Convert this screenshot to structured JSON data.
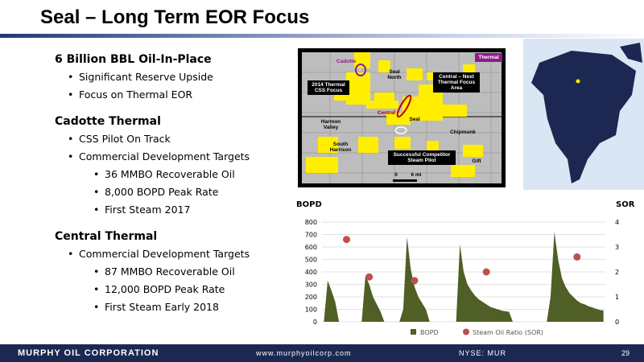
{
  "header": {
    "title": "Seal – Long Term EOR Focus"
  },
  "sections": [
    {
      "heading": "6 Billion BBL Oil-In-Place",
      "items": [
        {
          "text": "Significant Reserve Upside",
          "subitems": []
        },
        {
          "text": "Focus on Thermal EOR",
          "subitems": []
        }
      ]
    },
    {
      "heading": "Cadotte Thermal",
      "items": [
        {
          "text": "CSS Pilot On Track",
          "subitems": []
        },
        {
          "text": "Commercial Development Targets",
          "subitems": [
            "36 MMBO Recoverable Oil",
            "8,000 BOPD Peak Rate",
            "First Steam 2017"
          ]
        }
      ]
    },
    {
      "heading": "Central Thermal",
      "items": [
        {
          "text": "Commercial Development Targets",
          "subitems": [
            "87 MMBO Recoverable Oil",
            "12,000 BOPD Peak Rate",
            "First Steam Early 2018"
          ]
        }
      ]
    }
  ],
  "map": {
    "labels": [
      "Thermal",
      "Cadotte",
      "Seal North",
      "2014 Thermal CSS Focus",
      "Central – Next Thermal Focus Area",
      "Central",
      "Seal",
      "Harmon Valley",
      "Chipmunk",
      "South Harrison",
      "Successful Competitor Steam Pilot",
      "Gift",
      "0",
      "6 mi"
    ]
  },
  "chart_data": {
    "type": "area-scatter",
    "ylabel": "BOPD",
    "y2label": "SOR",
    "categories": [
      null,
      null,
      null,
      null,
      null,
      null,
      null,
      null,
      null,
      null,
      null,
      null,
      null,
      null,
      null,
      null,
      null,
      null,
      null,
      null,
      null,
      null,
      null,
      null,
      null,
      null,
      null,
      null,
      null,
      null,
      null,
      null,
      null,
      null,
      null,
      null,
      null,
      null,
      null,
      null,
      null,
      null,
      null,
      null,
      null,
      null,
      null,
      null,
      null,
      null,
      null,
      null,
      null,
      null,
      null,
      null,
      null,
      null,
      null,
      null,
      null,
      null,
      null,
      null,
      null,
      null,
      null,
      null,
      null,
      null,
      null,
      null,
      null,
      null,
      null
    ],
    "series": [
      {
        "name": "BOPD",
        "color": "#4f5f25",
        "type": "area",
        "values": [
          0,
          330,
          250,
          160,
          0,
          0,
          0,
          0,
          0,
          0,
          0,
          370,
          300,
          200,
          140,
          80,
          0,
          0,
          0,
          0,
          0,
          100,
          680,
          420,
          280,
          200,
          150,
          100,
          0,
          0,
          0,
          0,
          0,
          0,
          0,
          0,
          620,
          400,
          300,
          250,
          210,
          180,
          160,
          140,
          120,
          110,
          100,
          90,
          85,
          80,
          0,
          0,
          0,
          0,
          0,
          0,
          0,
          0,
          0,
          0,
          200,
          720,
          500,
          350,
          280,
          230,
          200,
          170,
          150,
          140,
          125,
          115,
          105,
          95,
          90
        ]
      },
      {
        "name": "Steam Oil Ratio (SOR)",
        "color": "#c0504d",
        "type": "scatter",
        "axis": "y2",
        "values": [
          null,
          null,
          null,
          null,
          null,
          null,
          3.3,
          null,
          null,
          null,
          null,
          null,
          1.8,
          null,
          null,
          null,
          null,
          null,
          null,
          null,
          null,
          null,
          null,
          null,
          1.65,
          null,
          null,
          null,
          null,
          null,
          null,
          null,
          null,
          null,
          null,
          null,
          null,
          null,
          null,
          null,
          null,
          null,
          null,
          2.0,
          null,
          null,
          null,
          null,
          null,
          null,
          null,
          null,
          null,
          null,
          null,
          null,
          null,
          null,
          null,
          null,
          null,
          null,
          null,
          null,
          null,
          null,
          null,
          2.6,
          null,
          null,
          null,
          null,
          null,
          null,
          null
        ]
      }
    ],
    "ylim": [
      0,
      800
    ],
    "yticks": [
      0,
      100,
      200,
      300,
      400,
      500,
      600,
      700,
      800
    ],
    "y2lim": [
      0,
      4
    ],
    "y2ticks": [
      0,
      1,
      2,
      3,
      4
    ],
    "grid": true
  },
  "footer": {
    "company": "MURPHY OIL CORPORATION",
    "website": "www.murphyoilcorp.com",
    "ticker": "NYSE: MUR",
    "page": "29"
  }
}
